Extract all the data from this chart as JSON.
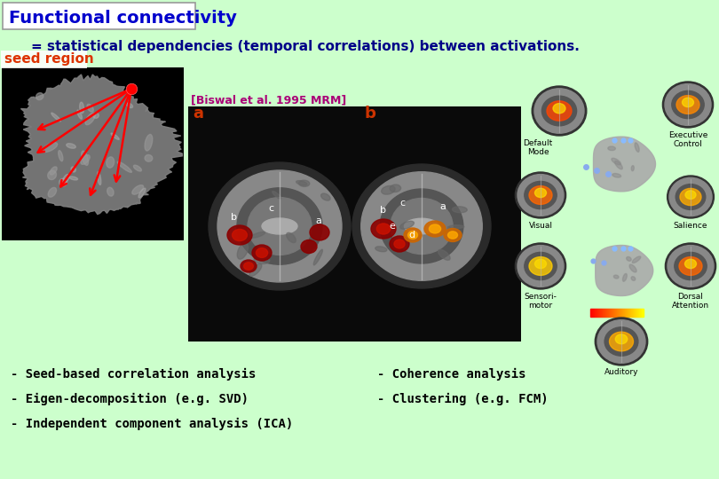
{
  "background_color": "#ccffcc",
  "title_box_color": "#ffffff",
  "title_text": "Functional connectivity",
  "title_color": "#0000cc",
  "title_fontsize": 14,
  "subtitle_text": "= statistical dependencies (temporal correlations) between activations.",
  "subtitle_color": "#000088",
  "subtitle_fontsize": 11,
  "seed_region_text": "seed region",
  "seed_region_color": "#dd3300",
  "seed_region_fontsize": 11,
  "biswal_text": "[Biswal et al. 1995 MRM]",
  "biswal_color": "#aa0077",
  "biswal_fontsize": 9,
  "bullet_color": "#000000",
  "bullet_fontsize": 10,
  "bullets_left": [
    "- Seed-based correlation analysis",
    "- Eigen-decomposition (e.g. SVD)",
    "- Independent component analysis (ICA)"
  ],
  "bullets_right": [
    "- Coherence analysis",
    "- Clustering (e.g. FCM)"
  ],
  "fig_width": 8.1,
  "fig_height": 5.4,
  "dpi": 100
}
